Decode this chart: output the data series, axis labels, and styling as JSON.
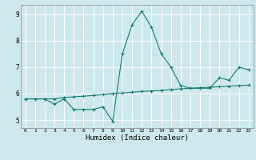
{
  "title": "",
  "xlabel": "Humidex (Indice chaleur)",
  "background_color": "#cce8ea",
  "grid_color": "#ffffff",
  "line_color": "#1a7a6e",
  "xlim": [
    -0.5,
    23.5
  ],
  "ylim": [
    4.7,
    9.35
  ],
  "yticks": [
    5,
    6,
    7,
    8,
    9
  ],
  "xticks": [
    0,
    1,
    2,
    3,
    4,
    5,
    6,
    7,
    8,
    9,
    10,
    11,
    12,
    13,
    14,
    15,
    16,
    17,
    18,
    19,
    20,
    21,
    22,
    23
  ],
  "line1_x": [
    0,
    1,
    2,
    3,
    4,
    5,
    6,
    7,
    8,
    9,
    10,
    11,
    12,
    13,
    14,
    15,
    16,
    17,
    18,
    19,
    20,
    21,
    22,
    23
  ],
  "line1_y": [
    5.8,
    5.8,
    5.8,
    5.6,
    5.8,
    5.4,
    5.4,
    5.4,
    5.5,
    4.95,
    7.5,
    8.6,
    9.1,
    8.5,
    7.5,
    7.0,
    6.3,
    6.2,
    6.2,
    6.2,
    6.6,
    6.5,
    7.0,
    6.9
  ],
  "line2_x": [
    0,
    1,
    2,
    3,
    4,
    5,
    6,
    7,
    8,
    9,
    10,
    11,
    12,
    13,
    14,
    15,
    16,
    17,
    18,
    19,
    20,
    21,
    22,
    23
  ],
  "line2_y": [
    5.8,
    5.8,
    5.8,
    5.8,
    5.85,
    5.88,
    5.9,
    5.93,
    5.96,
    6.0,
    6.02,
    6.05,
    6.08,
    6.1,
    6.12,
    6.15,
    6.18,
    6.2,
    6.22,
    6.24,
    6.26,
    6.28,
    6.3,
    6.32
  ]
}
